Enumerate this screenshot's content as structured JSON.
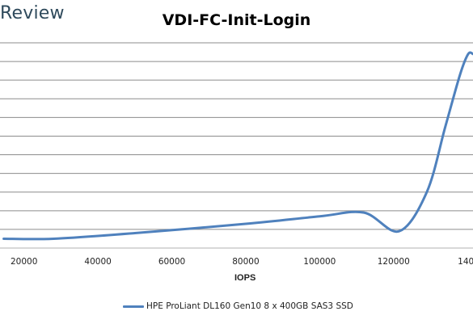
{
  "brand": {
    "text": "Review"
  },
  "chart_data": {
    "type": "line",
    "title": "VDI-FC-Init-Login",
    "xlabel": "IOPS",
    "ylabel": "",
    "x_ticks": [
      20000,
      40000,
      60000,
      80000,
      100000,
      120000,
      "140"
    ],
    "xlim": [
      13500,
      141500
    ],
    "ylim": [
      0,
      11
    ],
    "grid": true,
    "legend_position": "bottom",
    "series": [
      {
        "name": "HPE ProLiant DL160 Gen10 8 x 400GB SAS3 SSD",
        "color": "#4f81bd",
        "x": [
          14500,
          28000,
          50000,
          80000,
          100000,
          112000,
          121500,
          129000,
          134000,
          138000,
          140200,
          141500
        ],
        "y": [
          0.5,
          0.5,
          0.8,
          1.3,
          1.7,
          1.9,
          0.9,
          3.0,
          6.5,
          9.3,
          10.4,
          10.4
        ]
      }
    ]
  }
}
